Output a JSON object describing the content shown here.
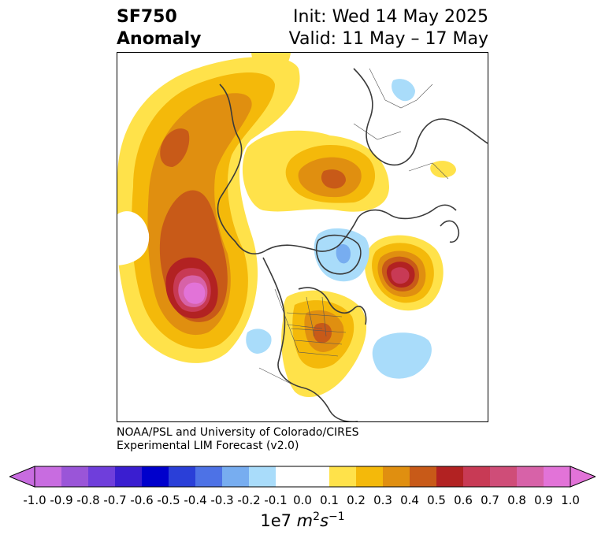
{
  "title": {
    "left_line1": "SF750",
    "left_line2": "Anomaly",
    "right_line1": "Init: Wed 14 May 2025",
    "right_line2": "Valid: 11 May – 17 May"
  },
  "credit": {
    "line1": "NOAA/PSL and University of Colorado/CIRES",
    "line2": "Experimental LIM Forecast (v2.0)"
  },
  "colorbar": {
    "ticks": [
      "-1.0",
      "-0.9",
      "-0.8",
      "-0.7",
      "-0.6",
      "-0.5",
      "-0.4",
      "-0.3",
      "-0.2",
      "-0.1",
      "0.0",
      "0.1",
      "0.2",
      "0.3",
      "0.4",
      "0.5",
      "0.6",
      "0.7",
      "0.8",
      "0.9",
      "1.0"
    ],
    "colors": [
      "#c86ce0",
      "#9a55d8",
      "#6f3edb",
      "#3a1ed0",
      "#0000cc",
      "#2a3fd8",
      "#4d72e6",
      "#77adf0",
      "#a9dcfa",
      "#ffffff",
      "#ffffff",
      "#ffe24a",
      "#f4b90a",
      "#e08f10",
      "#c85a18",
      "#b22222",
      "#c83a55",
      "#cf4d78",
      "#d762a8",
      "#e273d8"
    ],
    "units_base": "1e7",
    "units_m": "m",
    "units_m_exp": "2",
    "units_s": "s",
    "units_s_exp": "−1"
  }
}
